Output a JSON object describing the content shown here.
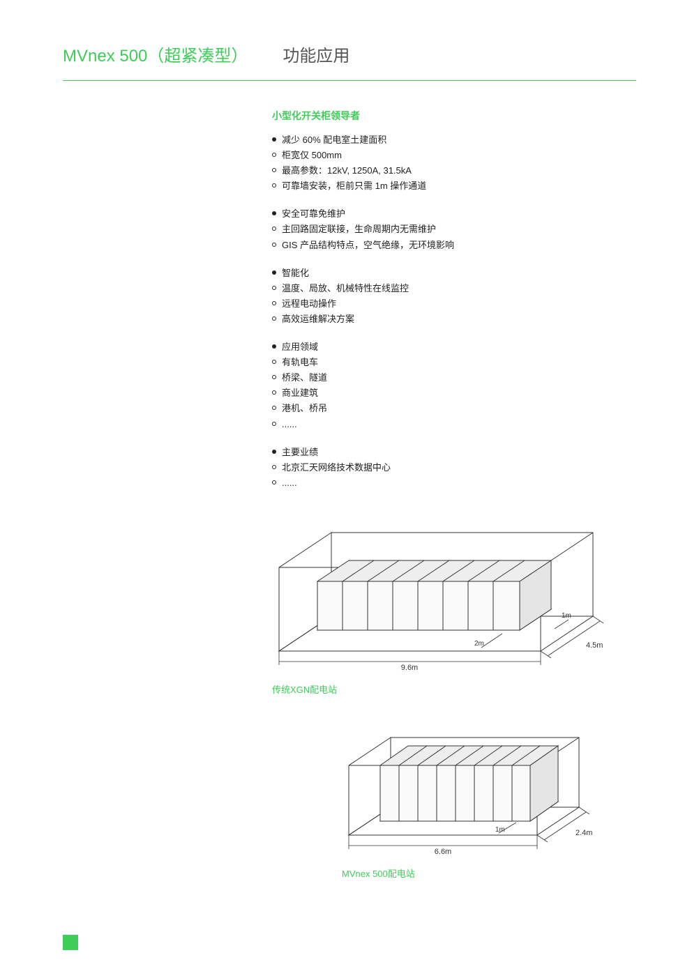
{
  "header": {
    "title_green": "MVnex 500（超紧凑型）",
    "title_grey": "功能应用"
  },
  "colors": {
    "accent": "#3dcd58",
    "text": "#222222",
    "heading_grey": "#555555",
    "diagram_stroke": "#333333",
    "diagram_fill": "#f5f5f5",
    "background": "#ffffff"
  },
  "section_title": "小型化开关柜领导者",
  "groups": [
    {
      "head": "减少 60% 配电室土建面积",
      "items": [
        "柜宽仅 500mm",
        "最高参数：12kV, 1250A, 31.5kA",
        "可靠墙安装，柜前只需 1m 操作通道"
      ]
    },
    {
      "head": "安全可靠免维护",
      "items": [
        "主回路固定联接，生命周期内无需维护",
        "GIS 产品结构特点，空气绝缘，无环境影响"
      ]
    },
    {
      "head": "智能化",
      "items": [
        "温度、局放、机械特性在线监控",
        "远程电动操作",
        "高效运维解决方案"
      ]
    },
    {
      "head": "应用领域",
      "items": [
        "有轨电车",
        "桥梁、隧道",
        "商业建筑",
        "港机、桥吊",
        "......"
      ]
    },
    {
      "head": "主要业绩",
      "items": [
        "北京汇天网络技术数据中心",
        "......"
      ]
    }
  ],
  "diagrams": {
    "d1": {
      "caption": "传统XGN配电站",
      "room": {
        "width": 9.6,
        "depth": 4.5
      },
      "cabinet_row": {
        "count": 8,
        "front_space": 2,
        "side_space": 1
      },
      "labels": {
        "width": "9.6m",
        "depth": "4.5m",
        "front": "2m",
        "side": "1m"
      }
    },
    "d2": {
      "caption": "MVnex 500配电站",
      "room": {
        "width": 6.6,
        "depth": 2.4
      },
      "cabinet_row": {
        "count": 8,
        "front_space": 1
      },
      "labels": {
        "width": "6.6m",
        "depth": "2.4m",
        "front": "1m"
      }
    }
  }
}
